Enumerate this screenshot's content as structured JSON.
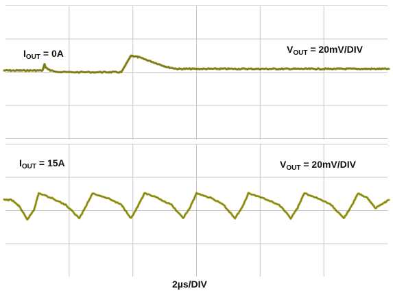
{
  "chart_data": [
    {
      "type": "line",
      "title": "",
      "trace_color": "#8a8a1c",
      "grid_color": "#c8c8c8",
      "label_left": {
        "var": "I",
        "sub": "OUT",
        "rest": " = 0A"
      },
      "label_right": {
        "var": "V",
        "sub": "OUT",
        "rest": " = 20mV/DIV"
      },
      "x_divisions": 10,
      "y_divisions": 8,
      "units": "mV",
      "points": [
        [
          0.0,
          0
        ],
        [
          0.5,
          0
        ],
        [
          1.0,
          0
        ],
        [
          1.5,
          0
        ],
        [
          2.0,
          0
        ],
        [
          2.1,
          4
        ],
        [
          2.15,
          2
        ],
        [
          2.4,
          0
        ],
        [
          3.0,
          -1
        ],
        [
          4.0,
          -1
        ],
        [
          5.0,
          -1
        ],
        [
          5.5,
          -1
        ],
        [
          6.1,
          -1
        ],
        [
          6.35,
          4
        ],
        [
          6.6,
          9
        ],
        [
          7.0,
          8
        ],
        [
          7.5,
          6
        ],
        [
          8.0,
          4
        ],
        [
          8.5,
          2
        ],
        [
          9.0,
          1
        ],
        [
          9.5,
          1
        ],
        [
          10.0,
          1
        ],
        [
          10.5,
          1
        ],
        [
          11.0,
          1
        ],
        [
          11.5,
          1
        ],
        [
          12.0,
          1
        ],
        [
          12.5,
          1
        ],
        [
          13.0,
          1
        ],
        [
          13.5,
          1
        ],
        [
          14.0,
          1
        ],
        [
          14.5,
          1
        ],
        [
          15.0,
          1
        ],
        [
          15.5,
          1
        ],
        [
          16.0,
          1
        ],
        [
          16.5,
          1
        ],
        [
          17.0,
          1
        ],
        [
          17.5,
          1
        ],
        [
          18.0,
          1
        ],
        [
          18.5,
          1
        ],
        [
          19.0,
          1
        ],
        [
          19.5,
          1
        ],
        [
          20.0,
          1
        ]
      ]
    },
    {
      "type": "line",
      "title": "",
      "trace_color": "#a0a01e",
      "grid_color": "#c8c8c8",
      "label_left": {
        "var": "I",
        "sub": "OUT",
        "rest": " = 15A"
      },
      "label_right": {
        "var": "V",
        "sub": "OUT",
        "rest": " = 20mV/DIV"
      },
      "x_divisions": 10,
      "y_divisions": 8,
      "units": "mV",
      "points": [
        [
          0.0,
          0
        ],
        [
          0.4,
          0
        ],
        [
          0.8,
          -4
        ],
        [
          1.2,
          -12
        ],
        [
          1.55,
          -6
        ],
        [
          1.8,
          4
        ],
        [
          2.5,
          1
        ],
        [
          3.2,
          -3
        ],
        [
          3.9,
          -11
        ],
        [
          4.2,
          -5
        ],
        [
          4.6,
          4
        ],
        [
          5.4,
          1
        ],
        [
          6.1,
          -3
        ],
        [
          6.6,
          -11
        ],
        [
          6.95,
          -4
        ],
        [
          7.3,
          4
        ],
        [
          8.0,
          1
        ],
        [
          8.7,
          -3
        ],
        [
          9.3,
          -11
        ],
        [
          9.65,
          -5
        ],
        [
          10.0,
          4
        ],
        [
          10.8,
          1
        ],
        [
          11.4,
          -3
        ],
        [
          12.0,
          -11
        ],
        [
          12.35,
          -5
        ],
        [
          12.7,
          4
        ],
        [
          13.5,
          1
        ],
        [
          14.3,
          -3
        ],
        [
          14.9,
          -11
        ],
        [
          15.25,
          -5
        ],
        [
          15.6,
          4
        ],
        [
          16.3,
          1
        ],
        [
          17.0,
          -3
        ],
        [
          17.65,
          -11
        ],
        [
          18.0,
          -5
        ],
        [
          18.4,
          4
        ],
        [
          18.9,
          1
        ],
        [
          19.3,
          -5
        ],
        [
          19.7,
          -2
        ],
        [
          20.0,
          0
        ]
      ]
    }
  ],
  "x_axis_label": "2µs/DIV"
}
